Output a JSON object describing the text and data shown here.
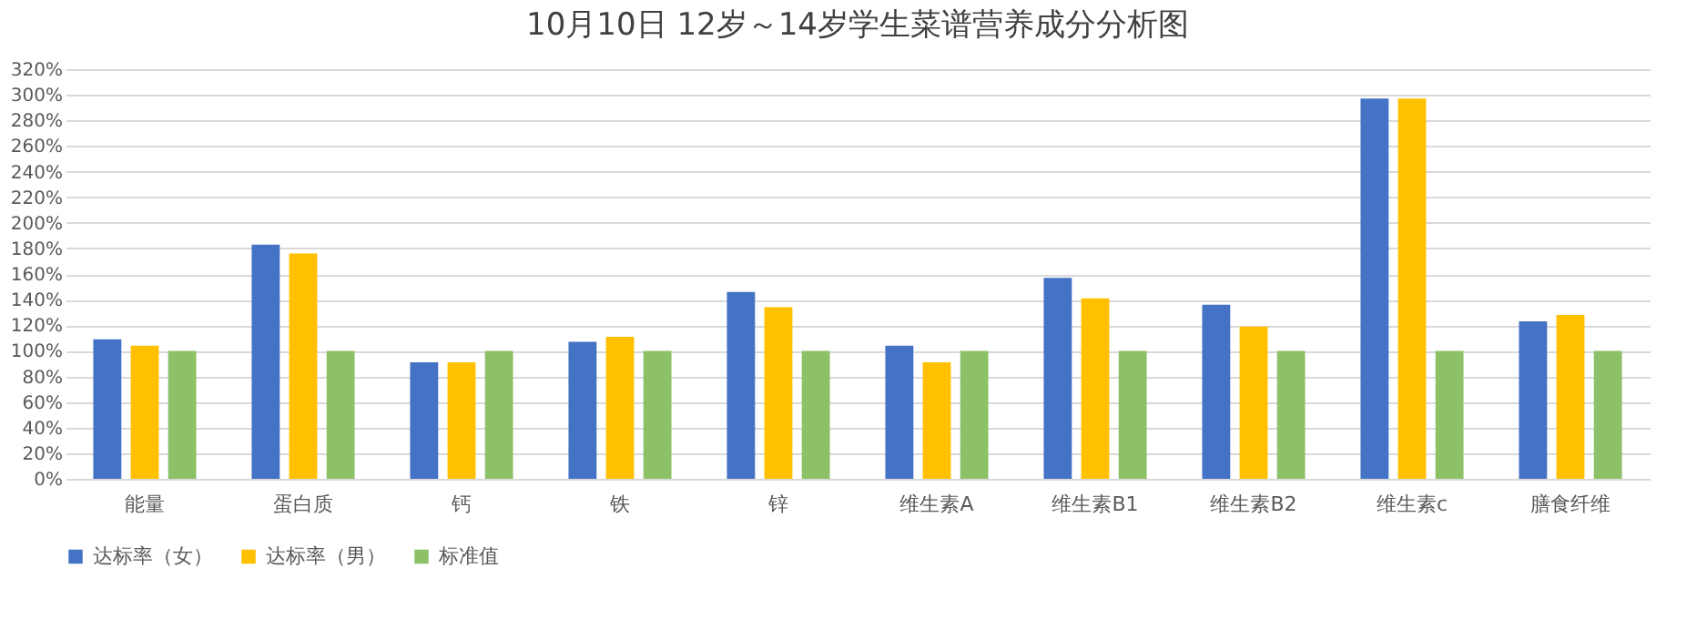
{
  "chart_data": {
    "type": "bar",
    "title": "10月10日 12岁～14岁学生菜谱营养成分分析图",
    "categories": [
      "能量",
      "蛋白质",
      "钙",
      "铁",
      "锌",
      "维生素A",
      "维生素B1",
      "维生素B2",
      "维生素c",
      "膳食纤维"
    ],
    "series": [
      {
        "name": "达标率（女）",
        "color": "#4472c4",
        "values": [
          109,
          183,
          91,
          107,
          146,
          104,
          157,
          136,
          297,
          123
        ]
      },
      {
        "name": "达标率（男）",
        "color": "#ffc000",
        "values": [
          104,
          176,
          91,
          111,
          134,
          91,
          141,
          119,
          297,
          128
        ]
      },
      {
        "name": "标准值",
        "color": "#8dc167",
        "values": [
          100,
          100,
          100,
          100,
          100,
          100,
          100,
          100,
          100,
          100
        ]
      }
    ],
    "ylim": [
      0,
      320
    ],
    "yticks": [
      {
        "value": 0,
        "label": "0%"
      },
      {
        "value": 20,
        "label": "20%"
      },
      {
        "value": 40,
        "label": "40%"
      },
      {
        "value": 60,
        "label": "60%"
      },
      {
        "value": 80,
        "label": "80%"
      },
      {
        "value": 100,
        "label": "100%"
      },
      {
        "value": 120,
        "label": "120%"
      },
      {
        "value": 140,
        "label": "140%"
      },
      {
        "value": 160,
        "label": "160%"
      },
      {
        "value": 180,
        "label": "180%"
      },
      {
        "value": 200,
        "label": "200%"
      },
      {
        "value": 220,
        "label": "220%"
      },
      {
        "value": 240,
        "label": "240%"
      },
      {
        "value": 260,
        "label": "260%"
      },
      {
        "value": 280,
        "label": "280%"
      },
      {
        "value": 300,
        "label": "300%"
      },
      {
        "value": 320,
        "label": "320%"
      }
    ],
    "grid": "y",
    "legend": "bottom"
  }
}
